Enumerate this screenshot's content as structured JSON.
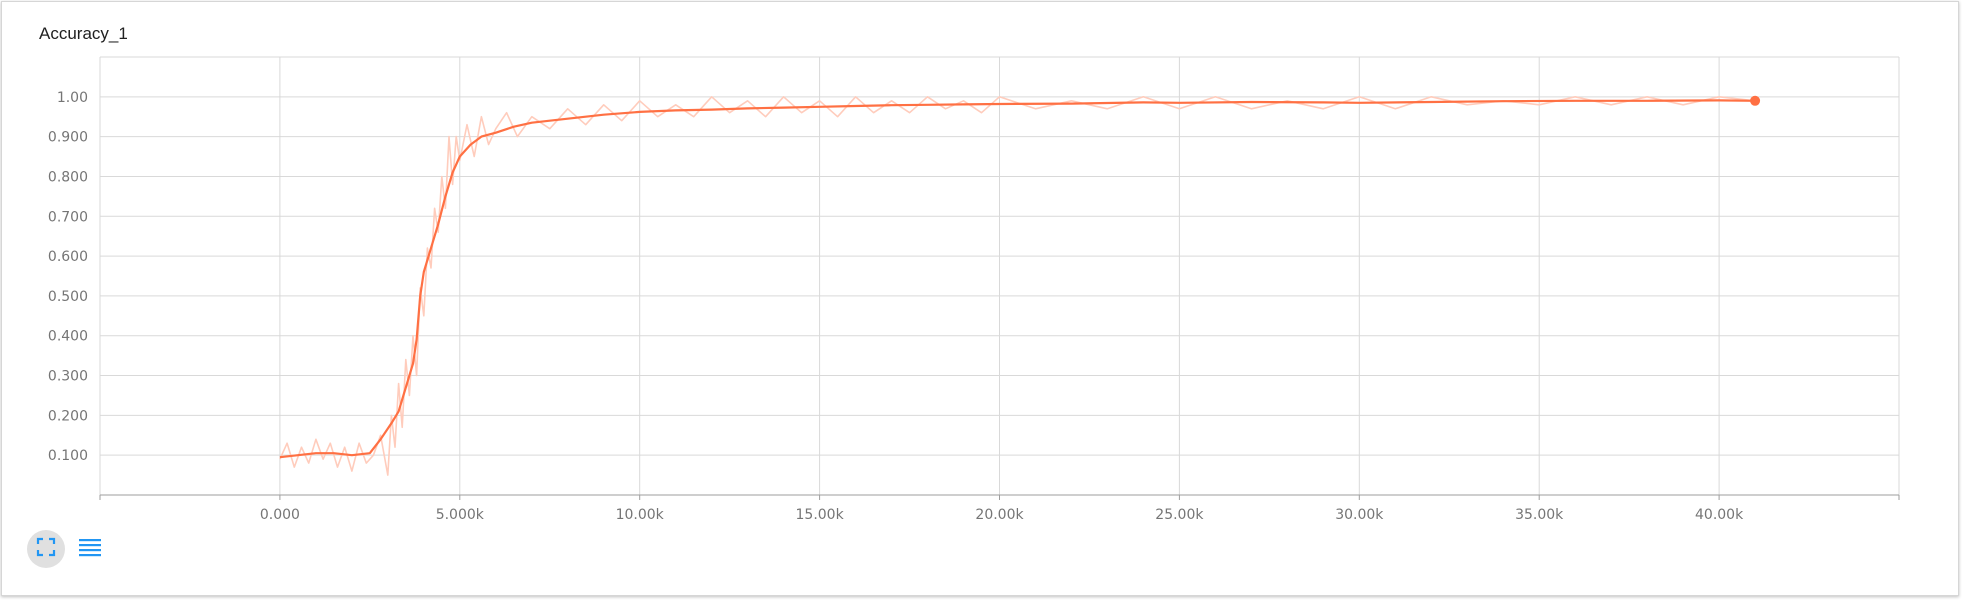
{
  "card": {
    "title": "Accuracy_1"
  },
  "toolbar": {
    "fit_icon": "fullscreen-fit-icon",
    "data_icon": "list-lines-icon"
  },
  "colors": {
    "accent": "#ff7043",
    "accent_light": "#ffccbc",
    "grid": "#d9d9d9",
    "button_bg": "#e0e0e0",
    "icon_blue": "#2196f3"
  },
  "chart_data": {
    "type": "line",
    "title": "Accuracy_1",
    "xlabel": "",
    "ylabel": "",
    "xlim": [
      -5000,
      45000
    ],
    "ylim": [
      0,
      1.1
    ],
    "grid": true,
    "x_ticks": [
      0,
      5000,
      10000,
      15000,
      20000,
      25000,
      30000,
      35000,
      40000
    ],
    "x_tick_labels": [
      "0.000",
      "5.000k",
      "10.00k",
      "15.00k",
      "20.00k",
      "25.00k",
      "30.00k",
      "35.00k",
      "40.00k"
    ],
    "y_ticks": [
      0.1,
      0.2,
      0.3,
      0.4,
      0.5,
      0.6,
      0.7,
      0.8,
      0.9,
      1.0
    ],
    "y_tick_labels": [
      "0.100",
      "0.200",
      "0.300",
      "0.400",
      "0.500",
      "0.600",
      "0.700",
      "0.800",
      "0.900",
      "1.00"
    ],
    "series": [
      {
        "smoothed": true,
        "x": [
          0,
          500,
          1000,
          1500,
          2000,
          2500,
          2800,
          3100,
          3300,
          3500,
          3700,
          3800,
          3900,
          4000,
          4200,
          4400,
          4600,
          4800,
          5000,
          5300,
          5600,
          6000,
          6500,
          7000,
          8000,
          9000,
          10000,
          11000,
          12000,
          13000,
          14000,
          15000,
          16000,
          17000,
          18000,
          19000,
          20000,
          22000,
          24000,
          25000,
          27000,
          29000,
          30000,
          32000,
          34000,
          36000,
          38000,
          40000,
          41000
        ],
        "y": [
          0.095,
          0.1,
          0.105,
          0.105,
          0.1,
          0.105,
          0.14,
          0.18,
          0.21,
          0.27,
          0.33,
          0.39,
          0.5,
          0.56,
          0.62,
          0.68,
          0.75,
          0.81,
          0.85,
          0.88,
          0.9,
          0.91,
          0.925,
          0.935,
          0.945,
          0.955,
          0.962,
          0.966,
          0.968,
          0.971,
          0.973,
          0.975,
          0.977,
          0.979,
          0.98,
          0.981,
          0.982,
          0.983,
          0.986,
          0.985,
          0.987,
          0.986,
          0.985,
          0.987,
          0.989,
          0.99,
          0.99,
          0.991,
          0.99
        ]
      },
      {
        "smoothed": false,
        "x": [
          0,
          200,
          400,
          600,
          800,
          1000,
          1200,
          1400,
          1600,
          1800,
          2000,
          2200,
          2400,
          2600,
          2800,
          3000,
          3100,
          3200,
          3300,
          3400,
          3500,
          3600,
          3700,
          3800,
          3900,
          4000,
          4100,
          4200,
          4300,
          4400,
          4500,
          4600,
          4700,
          4800,
          4900,
          5000,
          5200,
          5400,
          5600,
          5800,
          6000,
          6300,
          6600,
          7000,
          7500,
          8000,
          8500,
          9000,
          9500,
          10000,
          10500,
          11000,
          11500,
          12000,
          12500,
          13000,
          13500,
          14000,
          14500,
          15000,
          15500,
          16000,
          16500,
          17000,
          17500,
          18000,
          18500,
          19000,
          19500,
          20000,
          21000,
          22000,
          23000,
          24000,
          25000,
          26000,
          27000,
          28000,
          29000,
          30000,
          31000,
          32000,
          33000,
          34000,
          35000,
          36000,
          37000,
          38000,
          39000,
          40000,
          41000
        ],
        "y": [
          0.09,
          0.13,
          0.07,
          0.12,
          0.08,
          0.14,
          0.09,
          0.13,
          0.07,
          0.12,
          0.06,
          0.13,
          0.08,
          0.1,
          0.15,
          0.05,
          0.2,
          0.12,
          0.28,
          0.17,
          0.34,
          0.25,
          0.4,
          0.3,
          0.52,
          0.45,
          0.62,
          0.57,
          0.72,
          0.66,
          0.8,
          0.72,
          0.9,
          0.78,
          0.9,
          0.84,
          0.93,
          0.85,
          0.95,
          0.88,
          0.92,
          0.96,
          0.9,
          0.95,
          0.92,
          0.97,
          0.93,
          0.98,
          0.94,
          0.99,
          0.95,
          0.98,
          0.95,
          1.0,
          0.96,
          0.99,
          0.95,
          1.0,
          0.96,
          0.99,
          0.95,
          1.0,
          0.96,
          0.99,
          0.96,
          1.0,
          0.97,
          0.99,
          0.96,
          1.0,
          0.97,
          0.99,
          0.97,
          1.0,
          0.97,
          1.0,
          0.97,
          0.99,
          0.97,
          1.0,
          0.97,
          1.0,
          0.98,
          0.99,
          0.98,
          1.0,
          0.98,
          1.0,
          0.98,
          1.0,
          0.99
        ]
      }
    ]
  }
}
